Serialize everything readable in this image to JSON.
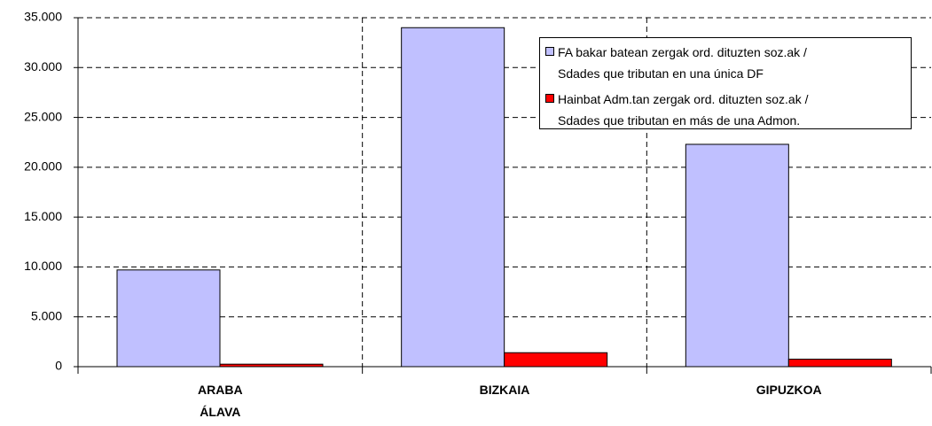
{
  "chart_data": {
    "type": "bar",
    "categories": [
      "ARABA\nÁLAVA",
      "BIZKAIA",
      "GIPUZKOA"
    ],
    "series": [
      {
        "name": "FA bakar batean zergak ord. dituzten soz.ak /\nSdades que tributan en una única DF",
        "color": "#c0c0ff",
        "values": [
          9700,
          34000,
          22300
        ]
      },
      {
        "name": "Hainbat Adm.tan zergak ord. dituzten soz.ak /\nSdades que tributan en más de una Admon.",
        "color": "#ff0000",
        "values": [
          250,
          1400,
          750
        ]
      }
    ],
    "ylim": [
      0,
      35000
    ],
    "yticks": [
      0,
      {
        "value": 5000,
        "label": "5.000"
      },
      {
        "value": 10000,
        "label": "10.000"
      },
      {
        "value": 15000,
        "label": "15.000"
      },
      {
        "value": 20000,
        "label": "20.000"
      },
      {
        "value": 25000,
        "label": "25.000"
      },
      {
        "value": 30000,
        "label": "30.000"
      },
      {
        "value": 35000,
        "label": "35.000"
      }
    ],
    "grid": true,
    "legend": "upper right"
  }
}
